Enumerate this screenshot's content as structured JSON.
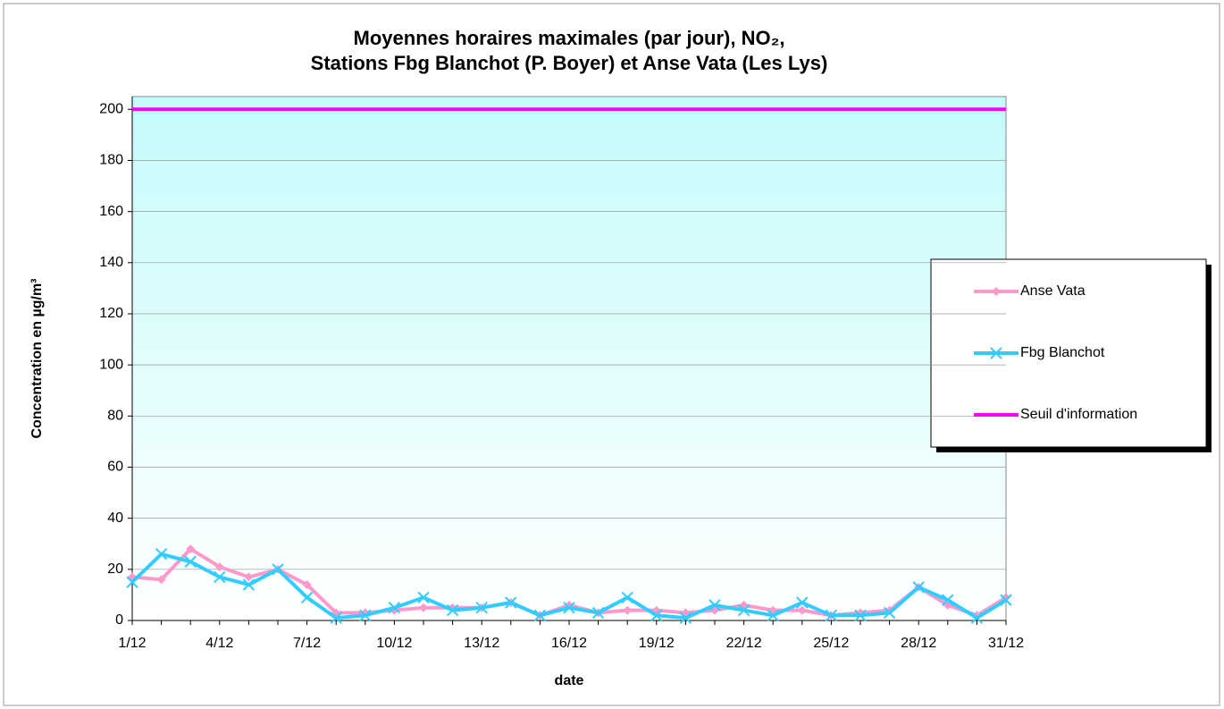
{
  "chart_data": {
    "type": "line",
    "title": [
      "Moyennes horaires maximales (par jour), NO₂,",
      "Stations Fbg Blanchot (P. Boyer) et Anse Vata (Les Lys)"
    ],
    "xlabel": "date",
    "ylabel": "Concentration en µg/m³",
    "categories": [
      "1/12",
      null,
      null,
      "4/12",
      null,
      null,
      "7/12",
      null,
      null,
      "10/12",
      null,
      null,
      "13/12",
      null,
      null,
      "16/12",
      null,
      null,
      "19/12",
      null,
      null,
      "22/12",
      null,
      null,
      "25/12",
      null,
      null,
      "28/12",
      null,
      null,
      "31/12"
    ],
    "series": [
      {
        "name": "Anse Vata",
        "color": "#ff99cc",
        "marker": "diamond",
        "values": [
          17,
          16,
          28,
          21,
          17,
          20,
          14,
          3,
          3,
          4,
          5,
          5,
          5,
          7,
          2,
          6,
          3,
          4,
          4,
          3,
          4,
          6,
          4,
          4,
          2,
          3,
          4,
          13,
          6,
          2,
          9
        ]
      },
      {
        "name": "Fbg Blanchot",
        "color": "#33ccff",
        "marker": "x",
        "values": [
          15,
          26,
          23,
          17,
          14,
          20,
          9,
          1,
          2,
          5,
          9,
          4,
          5,
          7,
          2,
          5,
          3,
          9,
          2,
          1,
          6,
          4,
          2,
          7,
          2,
          2,
          3,
          13,
          8,
          1,
          8
        ]
      },
      {
        "name": "Seuil d'information",
        "color": "#ff00ff",
        "marker": "none",
        "values": [
          200,
          200,
          200,
          200,
          200,
          200,
          200,
          200,
          200,
          200,
          200,
          200,
          200,
          200,
          200,
          200,
          200,
          200,
          200,
          200,
          200,
          200,
          200,
          200,
          200,
          200,
          200,
          200,
          200,
          200,
          200
        ]
      }
    ],
    "ylim": [
      0,
      205
    ],
    "yticks": [
      0,
      20,
      40,
      60,
      80,
      100,
      120,
      140,
      160,
      180,
      200
    ],
    "grid": true,
    "legend": "right"
  }
}
